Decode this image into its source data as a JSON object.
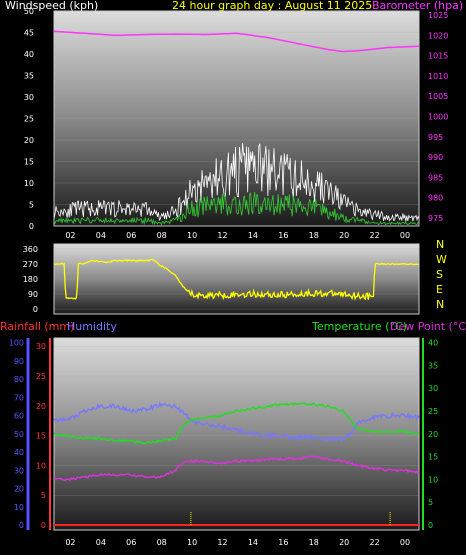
{
  "header": {
    "windspeed_label": "Windspeed (kph)",
    "graph_title": "24 hour graph day : August 11 2025",
    "barometer_label": "Barometer (hpa)"
  },
  "bottom_header": {
    "rainfall_label": "Rainfall (mm)",
    "humidity_label": "Humidity",
    "temperature_label": "Temperature (°C)",
    "dewpoint_label": "Dew Point (°C)"
  },
  "colors": {
    "wind_gust": "#ffffff",
    "wind_avg": "#33cc33",
    "barometer": "#ff33ff",
    "wind_dir": "#ffff00",
    "humidity": "#7777ff",
    "temperature": "#22dd22",
    "dewpoint": "#dd33dd",
    "rain": "#ff2222",
    "rain_axis": "#ff3333",
    "humidity_axis": "#5555ff",
    "temp_axis": "#22dd22"
  },
  "chart_data": [
    {
      "type": "line",
      "name": "wind_and_pressure",
      "x_ticks": [
        "02",
        "04",
        "06",
        "08",
        "10",
        "12",
        "14",
        "16",
        "18",
        "20",
        "22",
        "00"
      ],
      "y_left_ticks": [
        "0",
        "5",
        "10",
        "15",
        "20",
        "25",
        "30",
        "35",
        "40",
        "45",
        "50"
      ],
      "ylim_left": [
        0,
        50
      ],
      "y_right_ticks": [
        "975",
        "980",
        "985",
        "990",
        "995",
        "1000",
        "1005",
        "1010",
        "1015",
        "1020",
        "1025"
      ],
      "ylim_right": [
        973,
        1026
      ],
      "x_hours": [
        0,
        2,
        4,
        6,
        7,
        8,
        9,
        10,
        11,
        12,
        13,
        14,
        15,
        16,
        17,
        18,
        19,
        20,
        21,
        22,
        23,
        24
      ],
      "gust_envelope": [
        5,
        6,
        6,
        6,
        3,
        5,
        12,
        15,
        17,
        19,
        20,
        19,
        18,
        16,
        15,
        12,
        8,
        5,
        4,
        3,
        3,
        3
      ],
      "avg_envelope": [
        2,
        2,
        2,
        2,
        1,
        2,
        6,
        7,
        8,
        8,
        8,
        8,
        8,
        7,
        7,
        5,
        3,
        2,
        1,
        1,
        1,
        1
      ],
      "pressure_hours": [
        0,
        2,
        4,
        6,
        8,
        10,
        12,
        14,
        16,
        18,
        19,
        20,
        22,
        24
      ],
      "pressure": [
        1021,
        1020.5,
        1020,
        1020.2,
        1020.3,
        1020.2,
        1020.5,
        1019.5,
        1018,
        1016.5,
        1016,
        1016.2,
        1017,
        1017.3
      ]
    },
    {
      "type": "line",
      "name": "wind_direction",
      "y_ticks": [
        "360",
        "270",
        "180",
        "90",
        "0"
      ],
      "ylim": [
        0,
        360
      ],
      "compass_labels": [
        "N",
        "W",
        "S",
        "E",
        "N"
      ],
      "hours": [
        0,
        0.7,
        0.75,
        1.5,
        1.6,
        2,
        2.5,
        3,
        3.5,
        4,
        5,
        6,
        6.5,
        7,
        7.5,
        8,
        8.5,
        9,
        9.5,
        11,
        13,
        15,
        17,
        19,
        20,
        21,
        21.1,
        22,
        23,
        24
      ],
      "direction": [
        270,
        270,
        65,
        65,
        270,
        275,
        290,
        285,
        280,
        290,
        290,
        290,
        295,
        260,
        235,
        200,
        130,
        90,
        80,
        85,
        90,
        85,
        95,
        90,
        80,
        75,
        270,
        270,
        270,
        270
      ]
    },
    {
      "type": "line",
      "name": "rain_humidity_temperature",
      "humidity_ticks": [
        "0",
        "10",
        "20",
        "30",
        "40",
        "50",
        "60",
        "70",
        "80",
        "90",
        "100"
      ],
      "humidity_lim": [
        0,
        100
      ],
      "rain_ticks": [
        "0",
        "5",
        "10",
        "15",
        "20",
        "25",
        "30"
      ],
      "rain_lim": [
        0,
        30
      ],
      "temp_ticks": [
        "0",
        "5",
        "10",
        "15",
        "20",
        "25",
        "30",
        "35",
        "40"
      ],
      "temp_lim": [
        0,
        40
      ],
      "hours": [
        0,
        1,
        2,
        3,
        4,
        5,
        6,
        7,
        8,
        8.5,
        9,
        10,
        11,
        12,
        13,
        14,
        15,
        16,
        17,
        18,
        19,
        19.5,
        20,
        21,
        22,
        23,
        24
      ],
      "humidity": [
        57,
        58,
        62,
        65,
        65,
        63,
        63,
        66,
        65,
        62,
        57,
        55,
        54,
        52,
        50,
        49,
        49,
        48,
        48,
        47,
        47,
        50,
        56,
        59,
        60,
        60,
        59
      ],
      "temperature": [
        20,
        19.5,
        19,
        19,
        18.5,
        18.5,
        18,
        18.5,
        19,
        22,
        23,
        23.5,
        24,
        25,
        25.5,
        26,
        26.5,
        26.5,
        26.5,
        26,
        25,
        23,
        21,
        20.5,
        20.5,
        20.5,
        20
      ],
      "dewpoint": [
        10,
        10,
        10.5,
        11,
        11,
        11,
        10.5,
        10.5,
        12,
        14,
        14,
        14,
        13.5,
        14,
        14,
        14.5,
        14.5,
        14.5,
        15,
        14.5,
        14,
        13.5,
        13,
        12.5,
        12,
        12,
        11.5
      ],
      "rain": [
        0,
        0,
        0,
        0,
        0,
        0,
        0,
        0,
        0,
        0,
        0,
        0,
        0,
        0,
        0,
        0,
        0,
        0,
        0,
        0,
        0,
        0,
        0,
        0,
        0,
        0,
        0
      ]
    }
  ]
}
